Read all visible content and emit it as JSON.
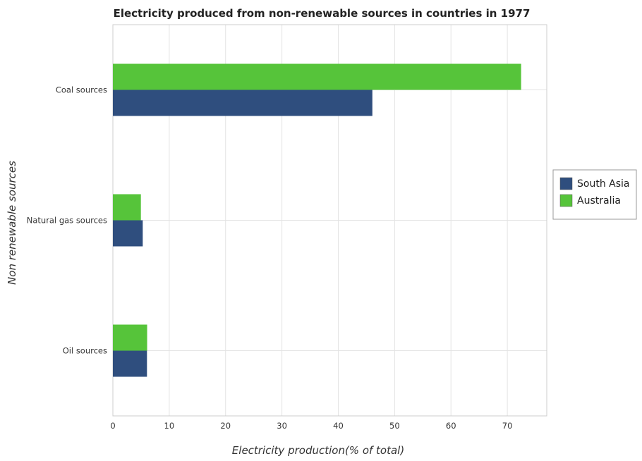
{
  "chart_data": {
    "type": "bar",
    "orientation": "horizontal",
    "title": "Electricity produced from non-renewable sources in countries in 1977",
    "xlabel": "Electricity production(% of total)",
    "ylabel": "Non renewable sources",
    "categories": [
      "Coal sources",
      "Natural gas sources",
      "Oil sources"
    ],
    "series": [
      {
        "name": "South Asia",
        "color": "#2f4e7e",
        "values": [
          46.05,
          5.3,
          6.05
        ]
      },
      {
        "name": "Australia",
        "color": "#56c43a",
        "values": [
          72.45,
          4.97,
          6.08
        ]
      }
    ],
    "xlim": [
      0,
      77
    ],
    "xticks": [
      0,
      10,
      20,
      30,
      40,
      50,
      60,
      70
    ],
    "grid": true,
    "legend_position": "right"
  }
}
